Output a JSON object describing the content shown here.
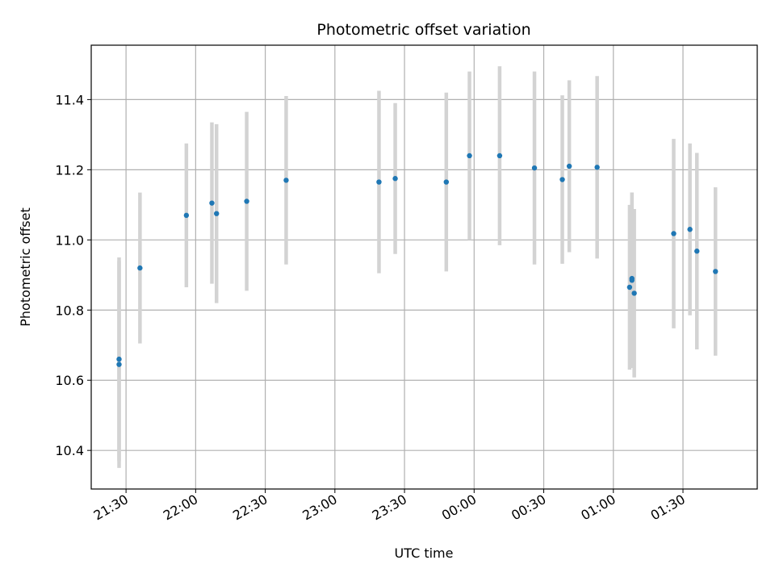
{
  "chart_data": {
    "type": "scatter",
    "title": "Photometric offset variation",
    "xlabel": "UTC time",
    "ylabel": "Photometric offset",
    "grid": true,
    "x_ticks": [
      "21:30",
      "22:00",
      "22:30",
      "23:00",
      "23:30",
      "00:00",
      "00:30",
      "01:00",
      "01:30"
    ],
    "y_ticks": [
      "10.4",
      "10.6",
      "10.8",
      "11.0",
      "11.2",
      "11.4"
    ],
    "xlim": [
      "21:15",
      "02:02"
    ],
    "ylim": [
      10.29,
      11.555
    ],
    "colors": {
      "marker": "#1f77b4",
      "errorbar": "#d3d3d3",
      "grid": "#b0b0b0"
    },
    "points": [
      {
        "t": "21:27",
        "y": 10.66,
        "yerr": 0.29
      },
      {
        "t": "21:27",
        "y": 10.645,
        "yerr": 0.295
      },
      {
        "t": "21:36",
        "y": 10.92,
        "yerr": 0.215
      },
      {
        "t": "21:56",
        "y": 11.07,
        "yerr": 0.205
      },
      {
        "t": "22:07",
        "y": 11.105,
        "yerr": 0.23
      },
      {
        "t": "22:09",
        "y": 11.075,
        "yerr": 0.255
      },
      {
        "t": "22:22",
        "y": 11.11,
        "yerr": 0.255
      },
      {
        "t": "22:39",
        "y": 11.17,
        "yerr": 0.24
      },
      {
        "t": "23:19",
        "y": 11.165,
        "yerr": 0.26
      },
      {
        "t": "23:26",
        "y": 11.175,
        "yerr": 0.215
      },
      {
        "t": "23:48",
        "y": 11.165,
        "yerr": 0.255
      },
      {
        "t": "23:58",
        "y": 11.24,
        "yerr": 0.24
      },
      {
        "t": "00:11",
        "y": 11.24,
        "yerr": 0.255
      },
      {
        "t": "00:26",
        "y": 11.205,
        "yerr": 0.275
      },
      {
        "t": "00:38",
        "y": 11.172,
        "yerr": 0.24
      },
      {
        "t": "00:41",
        "y": 11.21,
        "yerr": 0.245
      },
      {
        "t": "00:53",
        "y": 11.207,
        "yerr": 0.26
      },
      {
        "t": "01:07",
        "y": 10.865,
        "yerr": 0.235
      },
      {
        "t": "01:08",
        "y": 10.885,
        "yerr": 0.25
      },
      {
        "t": "01:08",
        "y": 10.89,
        "yerr": 0.245
      },
      {
        "t": "01:09",
        "y": 10.848,
        "yerr": 0.24
      },
      {
        "t": "01:26",
        "y": 11.018,
        "yerr": 0.27
      },
      {
        "t": "01:33",
        "y": 11.03,
        "yerr": 0.245
      },
      {
        "t": "01:36",
        "y": 10.968,
        "yerr": 0.28
      },
      {
        "t": "01:44",
        "y": 10.91,
        "yerr": 0.24
      }
    ]
  }
}
